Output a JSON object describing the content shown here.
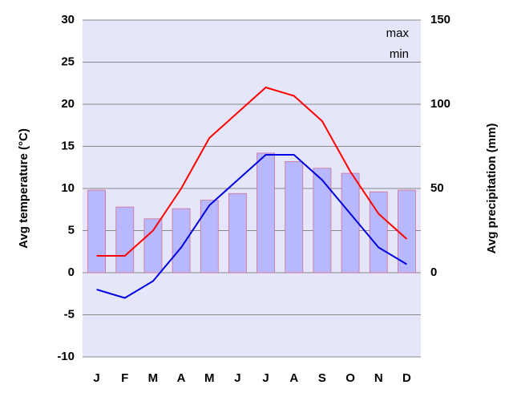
{
  "chart_data": {
    "type": "combo",
    "categories": [
      "J",
      "F",
      "M",
      "A",
      "M",
      "J",
      "J",
      "A",
      "S",
      "O",
      "N",
      "D"
    ],
    "ylabel": "Avg temperature (°C)",
    "y2label": "Avg precipitation (mm)",
    "ylim": [
      -10,
      30
    ],
    "yticks": [
      -10,
      -5,
      0,
      5,
      10,
      15,
      20,
      25,
      30
    ],
    "y2lim": [
      -50,
      150
    ],
    "y2ticks": [
      0,
      50,
      100,
      150
    ],
    "grid": true,
    "legend": "top-right",
    "series": [
      {
        "type": "bar",
        "axis": "y2",
        "color": "#b8b8ff",
        "values": [
          49,
          39,
          32,
          38,
          43,
          47,
          71,
          66,
          62,
          59,
          48,
          49
        ]
      },
      {
        "type": "line",
        "name": "max",
        "color": "#ff0000",
        "values": [
          2,
          2,
          5,
          10,
          16,
          19,
          22,
          21,
          18,
          12,
          7,
          4
        ]
      },
      {
        "type": "line",
        "name": "min",
        "color": "#0000e0",
        "values": [
          -2,
          -3,
          -1,
          3,
          8,
          11,
          14,
          14,
          11,
          7,
          3,
          1
        ]
      }
    ]
  }
}
